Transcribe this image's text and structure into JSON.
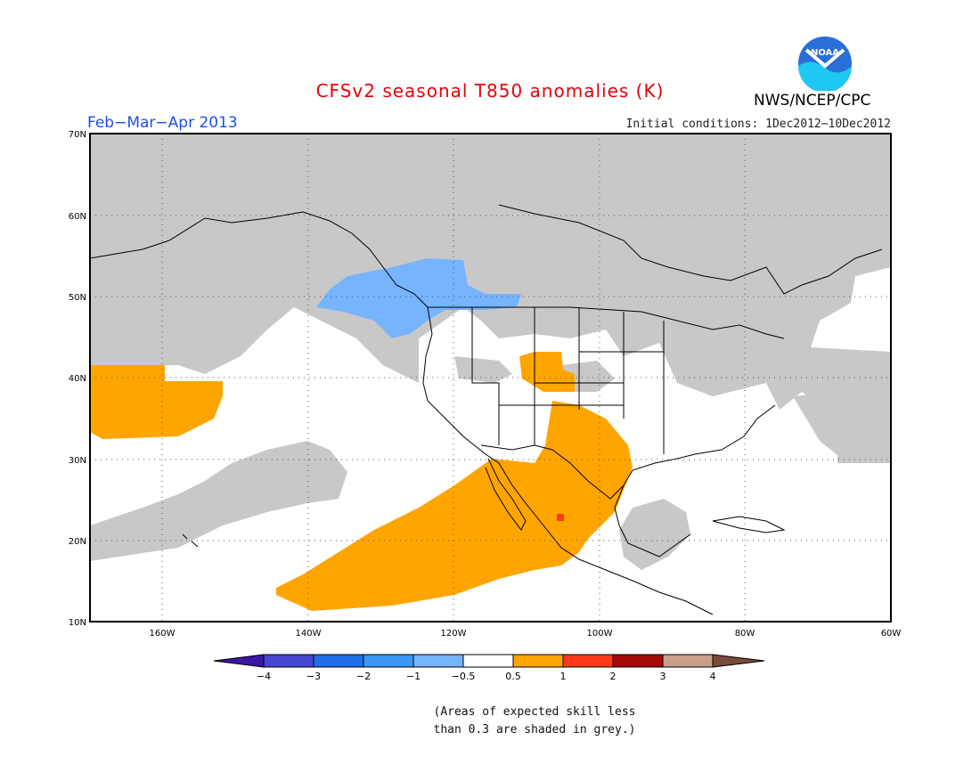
{
  "header": {
    "title": "CFSv2 seasonal T850 anomalies (K)",
    "period": "Feb−Mar−Apr 2013",
    "initial_conditions": "Initial conditions: 1Dec2012−10Dec2012",
    "agency": "NWS/NCEP/CPC",
    "logo_text": "NOAA"
  },
  "map": {
    "lat_labels": [
      "70N",
      "60N",
      "50N",
      "40N",
      "30N",
      "20N",
      "10N"
    ],
    "lon_labels": [
      "160W",
      "140W",
      "120W",
      "100W",
      "80W",
      "60W"
    ],
    "extent": {
      "lon_min": -172,
      "lon_max": -62,
      "lat_min": 10,
      "lat_max": 70
    },
    "colors": {
      "low_skill_grey": "#c8c8c8",
      "positive_anomaly": "#ffa500",
      "negative_anomaly": "#76b4ff",
      "hot_spot": "#ff3b1a",
      "coastline": "#000000"
    },
    "legend_cells": [
      {
        "color": "#3c17a6"
      },
      {
        "color": "#4646d2"
      },
      {
        "color": "#1e6ee6"
      },
      {
        "color": "#3c96f5"
      },
      {
        "color": "#76b4ff"
      },
      {
        "color": "#ffffff"
      },
      {
        "color": "#ffa500"
      },
      {
        "color": "#ff3b1a"
      },
      {
        "color": "#a50a0a"
      },
      {
        "color": "#c8a08c"
      },
      {
        "color": "#7a4a3a"
      }
    ],
    "legend_labels": [
      "−4",
      "−3",
      "−2",
      "−1",
      "−0.5",
      "0.5",
      "1",
      "2",
      "3",
      "4"
    ]
  },
  "notes": {
    "line1": "(Areas of expected skill less",
    "line2": "than 0.3 are shaded in grey.)"
  }
}
